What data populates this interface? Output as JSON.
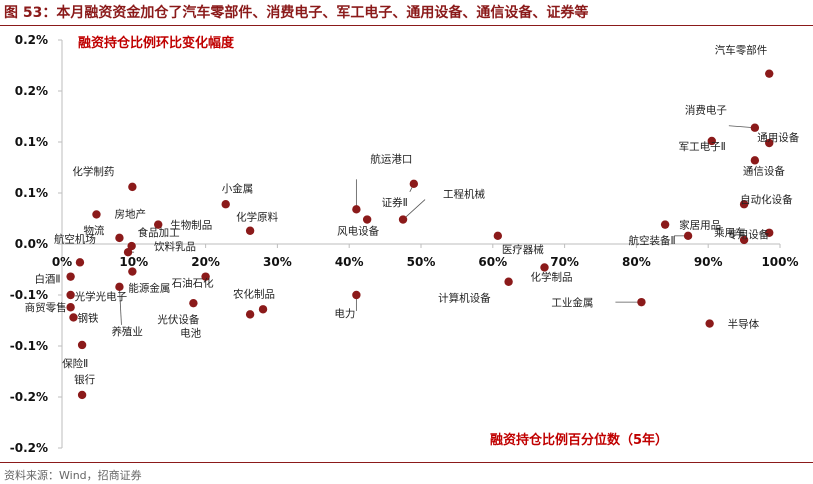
{
  "figure": {
    "title": "图 53：本月融资资金加仓了汽车零部件、消费电子、军工电子、通用设备、通信设备、证券等",
    "source": "资料来源：Wind，招商证券"
  },
  "chart_data": {
    "type": "scatter",
    "annotations": [
      "融资持仓比例环比变化幅度",
      "融资持仓比例百分位数（5年）"
    ],
    "x_ticks": [
      "0%",
      "10%",
      "20%",
      "30%",
      "40%",
      "50%",
      "60%",
      "70%",
      "80%",
      "90%",
      "100%"
    ],
    "y_ticks": [
      "0.2%",
      "0.2%",
      "0.1%",
      "0.1%",
      "0.0%",
      "-0.1%",
      "-0.1%",
      "-0.2%",
      "-0.2%"
    ],
    "xlim": [
      0,
      1.0
    ],
    "ylim": [
      -0.2,
      0.2
    ],
    "point_color": "#8b1a1a",
    "points": [
      {
        "label": "汽车零部件",
        "x": 0.985,
        "y": 0.167
      },
      {
        "label": "消费电子",
        "x": 0.965,
        "y": 0.114
      },
      {
        "label": "军工电子Ⅱ",
        "x": 0.905,
        "y": 0.101
      },
      {
        "label": "通用设备",
        "x": 0.985,
        "y": 0.099
      },
      {
        "label": "通信设备",
        "x": 0.965,
        "y": 0.082
      },
      {
        "label": "自动化设备",
        "x": 0.95,
        "y": 0.039
      },
      {
        "label": "家居用品",
        "x": 0.84,
        "y": 0.019
      },
      {
        "label": "航空装备Ⅱ",
        "x": 0.872,
        "y": 0.008
      },
      {
        "label": "乘用车",
        "x": 0.95,
        "y": 0.004
      },
      {
        "label": "专用设备",
        "x": 0.985,
        "y": 0.011
      },
      {
        "label": "航运港口",
        "x": 0.41,
        "y": 0.034
      },
      {
        "label": "证券Ⅱ",
        "x": 0.49,
        "y": 0.059
      },
      {
        "label": "工程机械",
        "x": 0.475,
        "y": 0.024
      },
      {
        "label": "风电设备",
        "x": 0.425,
        "y": 0.024
      },
      {
        "label": "医疗器械",
        "x": 0.607,
        "y": 0.008
      },
      {
        "label": "计算机设备",
        "x": 0.622,
        "y": -0.037
      },
      {
        "label": "化学制品",
        "x": 0.672,
        "y": -0.023
      },
      {
        "label": "工业金属",
        "x": 0.807,
        "y": -0.057
      },
      {
        "label": "半导体",
        "x": 0.902,
        "y": -0.078
      },
      {
        "label": "电力",
        "x": 0.41,
        "y": -0.05
      },
      {
        "label": "小金属",
        "x": 0.228,
        "y": 0.039
      },
      {
        "label": "化学原料",
        "x": 0.262,
        "y": 0.013
      },
      {
        "label": "化学制药",
        "x": 0.098,
        "y": 0.056
      },
      {
        "label": "房地产",
        "x": 0.048,
        "y": 0.029
      },
      {
        "label": "生物制品",
        "x": 0.134,
        "y": 0.019
      },
      {
        "label": "物流",
        "x": 0.08,
        "y": 0.006
      },
      {
        "label": "食品加工",
        "x": 0.097,
        "y": -0.002
      },
      {
        "label": "饮料乳品",
        "x": 0.092,
        "y": -0.008
      },
      {
        "label": "航空机场",
        "x": 0.025,
        "y": -0.018
      },
      {
        "label": "白酒Ⅱ",
        "x": 0.012,
        "y": -0.032
      },
      {
        "label": "能源金属",
        "x": 0.098,
        "y": -0.027
      },
      {
        "label": "石油石化",
        "x": 0.2,
        "y": -0.032
      },
      {
        "label": "光学光电子",
        "x": 0.012,
        "y": -0.05
      },
      {
        "label": "商贸零售",
        "x": 0.012,
        "y": -0.062
      },
      {
        "label": "钢铁",
        "x": 0.016,
        "y": -0.072
      },
      {
        "label": "养殖业",
        "x": 0.08,
        "y": -0.042
      },
      {
        "label": "光伏设备",
        "x": 0.183,
        "y": -0.058
      },
      {
        "label": "农化制品",
        "x": 0.28,
        "y": -0.064
      },
      {
        "label": "电池",
        "x": 0.262,
        "y": -0.069
      },
      {
        "label": "保险Ⅱ",
        "x": 0.028,
        "y": -0.099
      },
      {
        "label": "银行",
        "x": 0.028,
        "y": -0.148
      }
    ]
  }
}
